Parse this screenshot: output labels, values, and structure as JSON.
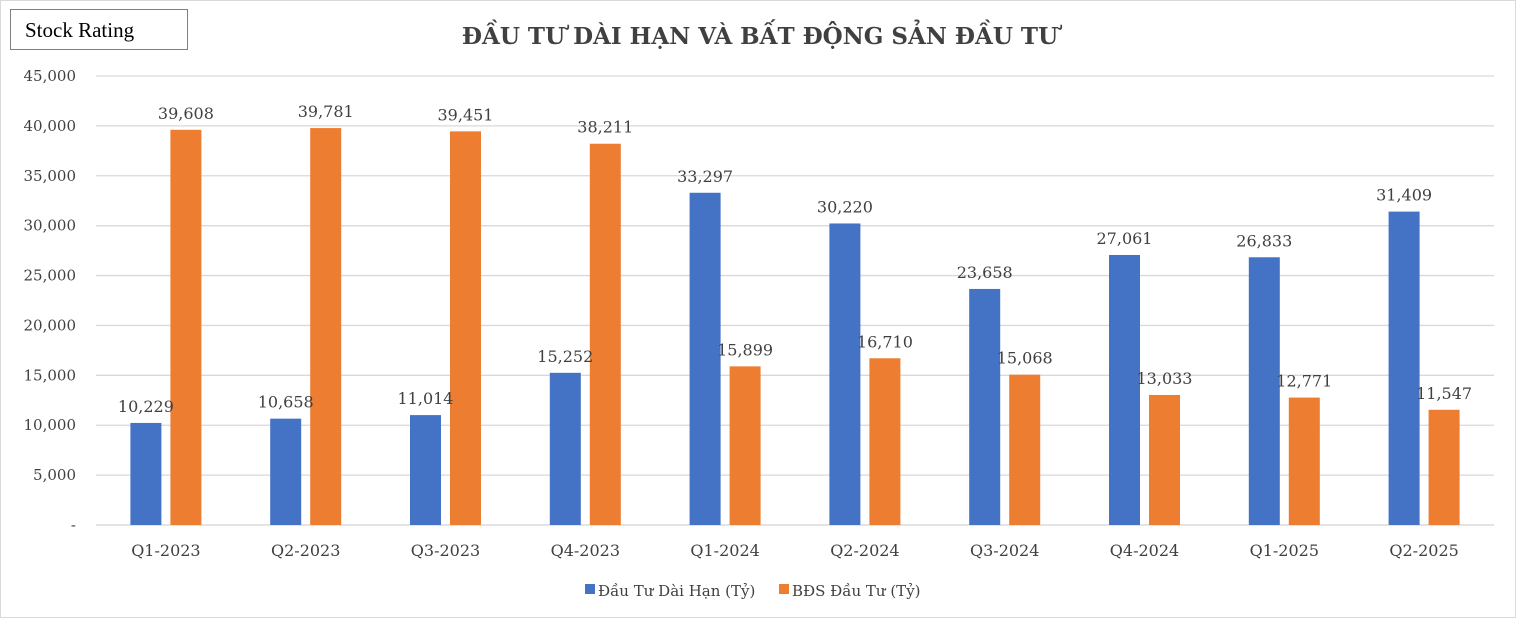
{
  "badge": {
    "label": "Stock Rating"
  },
  "chart_data": {
    "type": "bar",
    "title": "ĐẦU TƯ DÀI HẠN VÀ BẤT ĐỘNG SẢN ĐẦU TƯ",
    "categories": [
      "Q1-2023",
      "Q2-2023",
      "Q3-2023",
      "Q4-2023",
      "Q1-2024",
      "Q2-2024",
      "Q3-2024",
      "Q4-2024",
      "Q1-2025",
      "Q2-2025"
    ],
    "series": [
      {
        "name": "Đầu Tư Dài Hạn (Tỷ)",
        "color": "#4472c4",
        "values": [
          10229,
          10658,
          11014,
          15252,
          33297,
          30220,
          23658,
          27061,
          26833,
          31409
        ],
        "labels": [
          "10,229",
          "10,658",
          "11,014",
          "15,252",
          "33,297",
          "30,220",
          "23,658",
          "27,061",
          "26,833",
          "31,409"
        ]
      },
      {
        "name": "BĐS Đầu Tư (Tỷ)",
        "color": "#ed7d31",
        "values": [
          39608,
          39781,
          39451,
          38211,
          15899,
          16710,
          15068,
          13033,
          12771,
          11547
        ],
        "labels": [
          "39,608",
          "39,781",
          "39,451",
          "38,211",
          "15,899",
          "16,710",
          "15,068",
          "13,033",
          "12,771",
          "11,547"
        ]
      }
    ],
    "ylim": [
      0,
      45000
    ],
    "yticks": [
      0,
      5000,
      10000,
      15000,
      20000,
      25000,
      30000,
      35000,
      40000,
      45000
    ],
    "ytick_labels": [
      "-",
      "5,000",
      "10,000",
      "15,000",
      "20,000",
      "25,000",
      "30,000",
      "35,000",
      "40,000",
      "45,000"
    ],
    "grid": true,
    "legend_position": "bottom"
  }
}
